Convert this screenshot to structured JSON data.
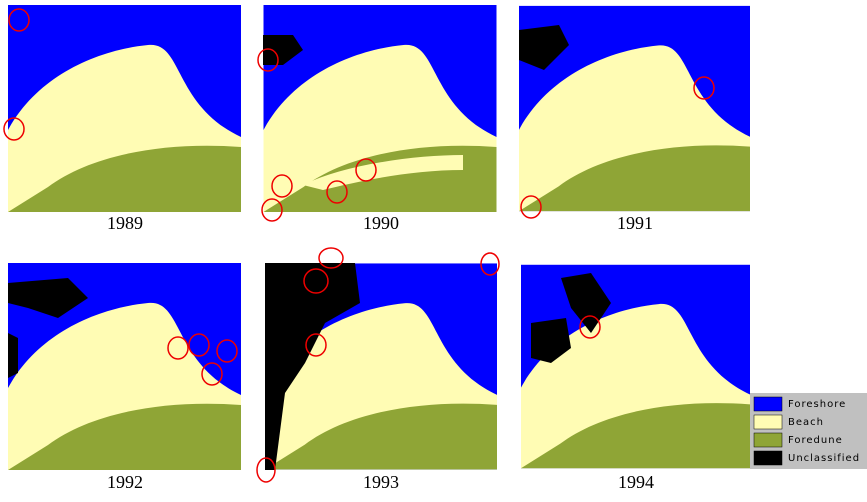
{
  "panels": [
    {
      "year": "1989"
    },
    {
      "year": "1990"
    },
    {
      "year": "1991"
    },
    {
      "year": "1992"
    },
    {
      "year": "1993"
    },
    {
      "year": "1994"
    }
  ],
  "legend": [
    {
      "label": "Foreshore",
      "color": "#0000ff"
    },
    {
      "label": "Beach",
      "color": "#fffcb4"
    },
    {
      "label": "Foredune",
      "color": "#8fa536"
    },
    {
      "label": "Unclassified",
      "color": "#000000"
    }
  ]
}
